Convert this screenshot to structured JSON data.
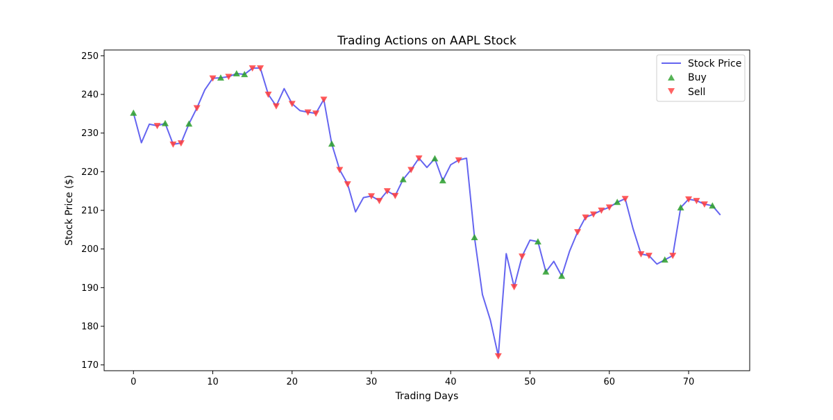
{
  "chart_data": {
    "type": "line",
    "title": "Trading Actions on AAPL Stock",
    "xlabel": "Trading Days",
    "ylabel": "Stock Price ($)",
    "xlim": [
      -3.7,
      77.7
    ],
    "ylim": [
      168.5,
      251.5
    ],
    "x_ticks": [
      0,
      10,
      20,
      30,
      40,
      50,
      60,
      70
    ],
    "y_ticks": [
      170,
      180,
      190,
      200,
      210,
      220,
      230,
      240,
      250
    ],
    "grid": false,
    "legend_position": "top-right",
    "colors": {
      "line": "#6464f0",
      "buy": "#2ca02c",
      "sell": "#ff3c3c"
    },
    "price": {
      "name": "Stock Price",
      "x": [
        0,
        1,
        2,
        3,
        4,
        5,
        6,
        7,
        8,
        9,
        10,
        11,
        12,
        13,
        14,
        15,
        16,
        17,
        18,
        19,
        20,
        21,
        22,
        23,
        24,
        25,
        26,
        27,
        28,
        29,
        30,
        31,
        32,
        33,
        34,
        35,
        36,
        37,
        38,
        39,
        40,
        41,
        42,
        43,
        44,
        45,
        46,
        47,
        48,
        49,
        50,
        51,
        52,
        53,
        54,
        55,
        56,
        57,
        58,
        59,
        60,
        61,
        62,
        63,
        64,
        65,
        66,
        67,
        68,
        69,
        70,
        71,
        72,
        73,
        74
      ],
      "y": [
        235.2,
        227.5,
        232.3,
        231.9,
        232.5,
        227.1,
        227.4,
        232.4,
        236.5,
        241.2,
        244.2,
        244.3,
        244.6,
        245.4,
        245.2,
        246.8,
        246.8,
        240.0,
        237.0,
        241.5,
        237.6,
        235.8,
        235.4,
        235.1,
        238.7,
        227.2,
        220.5,
        216.8,
        209.6,
        213.3,
        213.7,
        212.5,
        215.0,
        213.8,
        218.0,
        220.5,
        223.5,
        221.1,
        223.4,
        217.7,
        221.8,
        223.0,
        223.5,
        203.0,
        188.2,
        181.6,
        172.3,
        198.8,
        190.2,
        198.1,
        202.3,
        201.9,
        194.1,
        196.8,
        193.0,
        199.5,
        204.4,
        208.2,
        209.0,
        210.0,
        210.8,
        212.1,
        213.0,
        205.2,
        198.7,
        198.3,
        196.1,
        197.2,
        198.3,
        210.7,
        212.9,
        212.5,
        211.6,
        211.2,
        208.8
      ]
    },
    "buy": {
      "name": "Buy",
      "x": [
        0,
        4,
        7,
        11,
        13,
        14,
        25,
        34,
        38,
        39,
        43,
        51,
        52,
        54,
        61,
        67,
        69,
        73
      ],
      "y": [
        235.2,
        232.5,
        232.4,
        244.3,
        245.4,
        245.2,
        227.2,
        218.0,
        223.4,
        217.7,
        203.0,
        201.9,
        194.1,
        193.0,
        212.1,
        197.2,
        210.7,
        211.2
      ]
    },
    "sell": {
      "name": "Sell",
      "x": [
        3,
        5,
        6,
        8,
        10,
        12,
        15,
        16,
        17,
        18,
        20,
        22,
        23,
        24,
        26,
        27,
        30,
        31,
        32,
        33,
        35,
        36,
        41,
        46,
        48,
        49,
        56,
        57,
        58,
        59,
        60,
        62,
        64,
        65,
        68,
        70,
        71,
        72
      ],
      "y": [
        231.9,
        227.1,
        227.4,
        236.5,
        244.2,
        244.6,
        246.8,
        246.8,
        240.0,
        237.0,
        237.6,
        235.4,
        235.1,
        238.7,
        220.5,
        216.8,
        213.7,
        212.5,
        215.0,
        213.8,
        220.5,
        223.5,
        223.0,
        172.3,
        190.2,
        198.1,
        204.4,
        208.2,
        209.0,
        210.0,
        210.8,
        213.0,
        198.7,
        198.3,
        198.3,
        212.9,
        212.5,
        211.6
      ]
    }
  }
}
